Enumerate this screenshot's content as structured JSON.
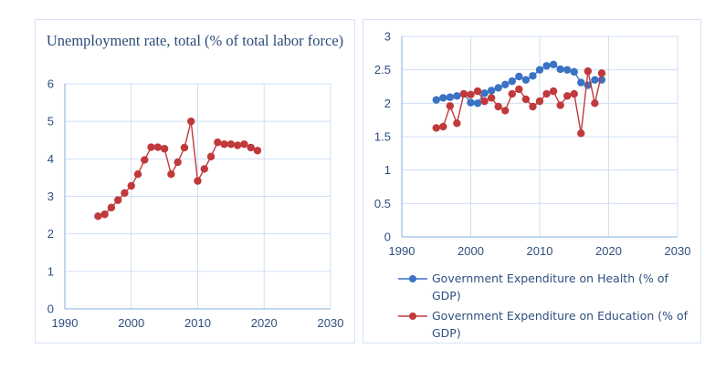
{
  "chart_data": [
    {
      "type": "line",
      "title": "Unemployment rate, total  (% of total labor force)",
      "xlabel": "",
      "ylabel": "",
      "xlim": [
        1990,
        2030
      ],
      "ylim": [
        0,
        6
      ],
      "xticks": [
        "1990",
        "2000",
        "2010",
        "2020",
        "2030"
      ],
      "yticks": [
        "0",
        "1",
        "2",
        "3",
        "4",
        "5",
        "6"
      ],
      "grid": true,
      "legend": "none",
      "x": [
        1995,
        1996,
        1997,
        1998,
        1999,
        2000,
        2001,
        2002,
        2003,
        2004,
        2005,
        2006,
        2007,
        2008,
        2009,
        2010,
        2011,
        2012,
        2013,
        2014,
        2015,
        2016,
        2017,
        2018,
        2019
      ],
      "series": [
        {
          "name": "Unemployment rate, total (% of total labor force)",
          "color": "#c0393b",
          "values": [
            2.47,
            2.52,
            2.7,
            2.9,
            3.09,
            3.28,
            3.59,
            3.97,
            4.31,
            4.31,
            4.27,
            3.59,
            3.91,
            4.3,
            5.0,
            3.41,
            3.73,
            4.06,
            4.44,
            4.39,
            4.39,
            4.36,
            4.39,
            4.3,
            4.22
          ]
        }
      ]
    },
    {
      "type": "line",
      "title": "",
      "xlabel": "",
      "ylabel": "",
      "xlim": [
        1990,
        2030
      ],
      "ylim": [
        0,
        3
      ],
      "xticks": [
        "1990",
        "2000",
        "2010",
        "2020",
        "2030"
      ],
      "yticks": [
        "0",
        "0.5",
        "1",
        "1.5",
        "2",
        "2.5",
        "3"
      ],
      "grid": true,
      "legend": "bottom",
      "x": [
        1995,
        1996,
        1997,
        1998,
        1999,
        2000,
        2001,
        2002,
        2003,
        2004,
        2005,
        2006,
        2007,
        2008,
        2009,
        2010,
        2011,
        2012,
        2013,
        2014,
        2015,
        2016,
        2017,
        2018,
        2019
      ],
      "series": [
        {
          "name": "Government Expenditure on Health (% of GDP)",
          "color": "#3a72c4",
          "values": [
            2.05,
            2.08,
            2.09,
            2.11,
            2.14,
            2.01,
            2.0,
            2.15,
            2.19,
            2.23,
            2.28,
            2.33,
            2.4,
            2.35,
            2.41,
            2.5,
            2.56,
            2.58,
            2.51,
            2.5,
            2.47,
            2.31,
            2.27,
            2.35,
            2.35
          ]
        },
        {
          "name": "Government Expenditure on Education (% of GDP)",
          "color": "#c0393b",
          "values": [
            1.63,
            1.65,
            1.96,
            1.7,
            2.14,
            2.13,
            2.18,
            2.03,
            2.08,
            1.95,
            1.89,
            2.14,
            2.21,
            2.06,
            1.95,
            2.03,
            2.14,
            2.18,
            1.97,
            2.11,
            2.14,
            1.55,
            2.48,
            2.0,
            2.45
          ]
        }
      ]
    }
  ]
}
